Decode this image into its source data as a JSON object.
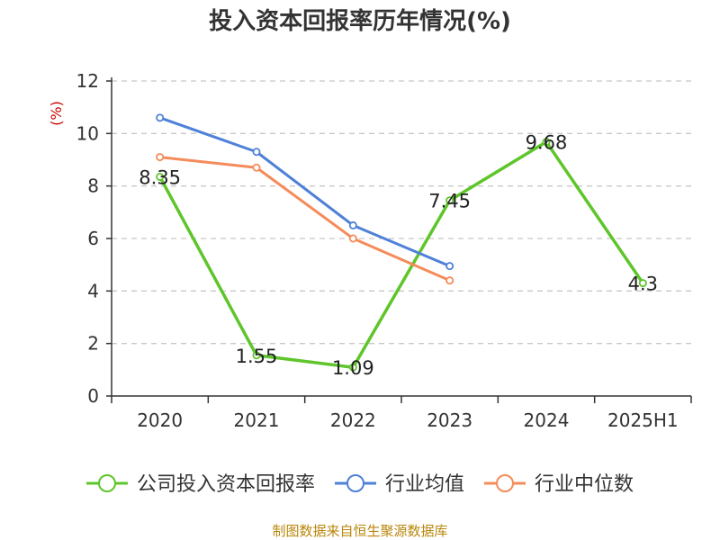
{
  "title": "投入资本回报率历年情况(%)",
  "source": "制图数据来自恒生聚源数据库",
  "chart_data": {
    "type": "line",
    "title": "投入资本回报率历年情况(%)",
    "ylabel": "(%)",
    "xlabel": "",
    "categories": [
      "2020",
      "2021",
      "2022",
      "2023",
      "2024",
      "2025H1"
    ],
    "ylim": [
      0,
      12
    ],
    "yticks": [
      0,
      2,
      4,
      6,
      8,
      10,
      12
    ],
    "grid": true,
    "legend_position": "bottom",
    "series": [
      {
        "name": "公司投入资本回报率",
        "color": "#5ec52a",
        "values": [
          8.35,
          1.55,
          1.09,
          7.45,
          9.68,
          4.3
        ],
        "labels": [
          "8.35",
          "1.55",
          "1.09",
          "7.45",
          "9.68",
          "4.3"
        ]
      },
      {
        "name": "行业均值",
        "color": "#4f81d8",
        "values": [
          10.6,
          9.3,
          6.5,
          4.95,
          null,
          null
        ]
      },
      {
        "name": "行业中位数",
        "color": "#f58b5a",
        "values": [
          9.1,
          8.7,
          6.0,
          4.4,
          null,
          null
        ]
      }
    ]
  }
}
